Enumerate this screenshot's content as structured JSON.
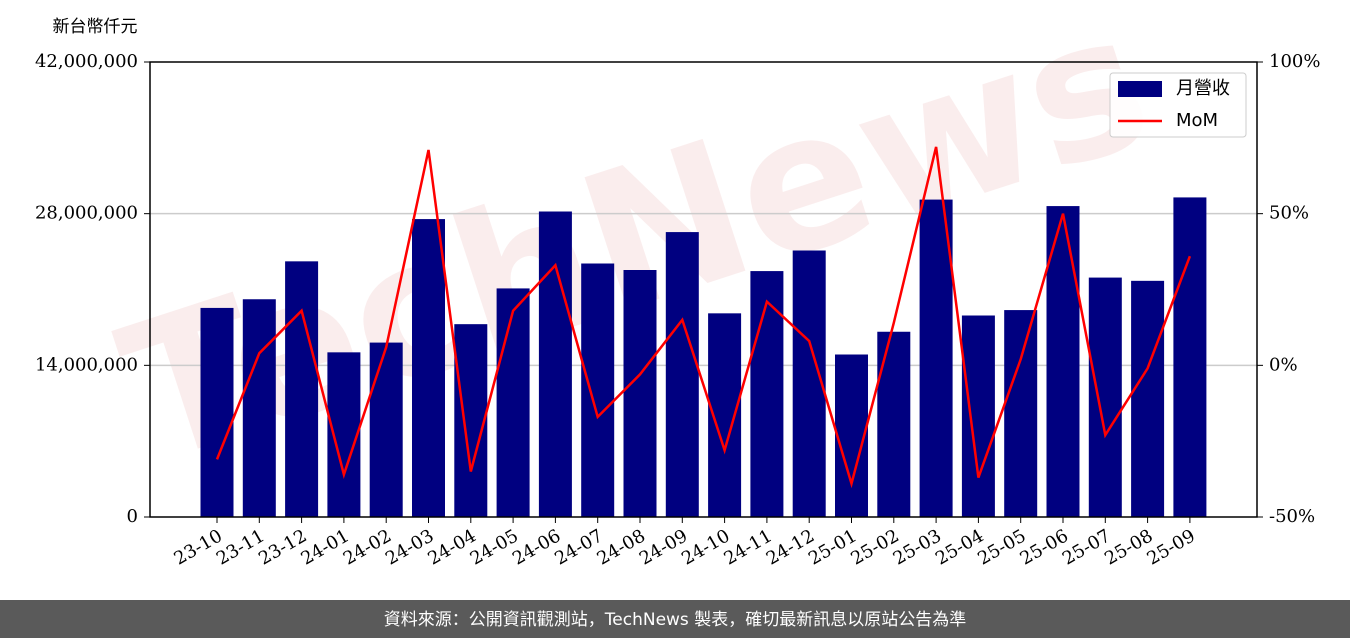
{
  "chart_data": {
    "type": "bar",
    "y_axis_label": "新台幣仟元",
    "watermark": "TechNews",
    "footer": "資料來源：公開資訊觀測站，TechNews 製表，確切最新訊息以原站公告為準",
    "categories": [
      "23-10",
      "23-11",
      "23-12",
      "24-01",
      "24-02",
      "24-03",
      "24-04",
      "24-05",
      "24-06",
      "24-07",
      "24-08",
      "24-09",
      "24-10",
      "24-11",
      "24-12",
      "25-01",
      "25-02",
      "25-03",
      "25-04",
      "25-05",
      "25-06",
      "25-07",
      "25-08",
      "25-09"
    ],
    "series": [
      {
        "name": "月營收",
        "color": "#000080",
        "values": [
          19300000,
          20100000,
          23600000,
          15200000,
          16100000,
          27500000,
          17800000,
          21100000,
          28200000,
          23400000,
          22800000,
          26300000,
          18800000,
          22700000,
          24600000,
          15000000,
          17100000,
          29300000,
          18600000,
          19100000,
          28700000,
          22100000,
          21800000,
          29500000
        ]
      },
      {
        "name": "MoM",
        "type": "line",
        "axis": "y2",
        "color": "#ff0000",
        "values": [
          -31,
          4,
          18,
          -36,
          6,
          71,
          -35,
          18,
          33,
          -17,
          -3,
          15,
          -28,
          21,
          8,
          -39,
          14,
          72,
          -37,
          2,
          50,
          -23,
          -1,
          36
        ]
      }
    ],
    "ylim": [
      0,
      42000000
    ],
    "yticks": [
      {
        "value": 0,
        "label": "0"
      },
      {
        "value": 14000000,
        "label": "14,000,000"
      },
      {
        "value": 28000000,
        "label": "28,000,000"
      },
      {
        "value": 42000000,
        "label": "42,000,000"
      }
    ],
    "y2lim": [
      -50,
      100
    ],
    "y2ticks": [
      {
        "value": -50,
        "label": "-50%"
      },
      {
        "value": 0,
        "label": "0%"
      },
      {
        "value": 50,
        "label": "50%"
      },
      {
        "value": 100,
        "label": "100%"
      }
    ],
    "grid": true,
    "legend": "upper right"
  }
}
